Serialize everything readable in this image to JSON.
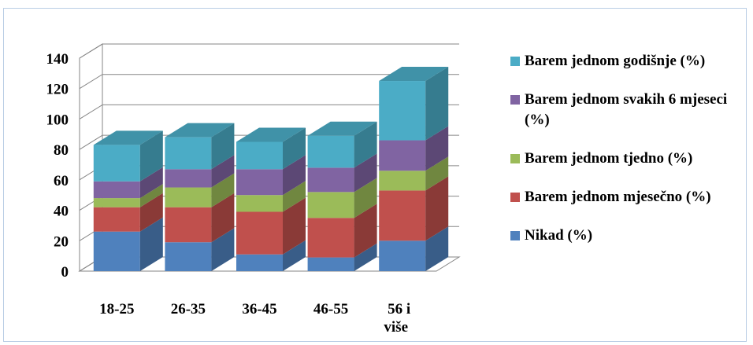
{
  "chart_data": {
    "type": "bar",
    "stacked": true,
    "three_d": true,
    "categories": [
      "18-25",
      "26-35",
      "36-45",
      "46-55",
      "56 i više"
    ],
    "series": [
      {
        "name": "Nikad (%)",
        "color": "#4f81bd",
        "values": [
          26,
          19,
          11,
          9,
          20
        ]
      },
      {
        "name": "Barem jednom mjesečno (%)",
        "color": "#c0504d",
        "values": [
          16,
          23,
          28,
          26,
          33
        ]
      },
      {
        "name": "Barem jednom tjedno (%)",
        "color": "#9bbb59",
        "values": [
          6,
          13,
          11,
          17,
          13
        ]
      },
      {
        "name": "Barem jednom svakih 6 mjeseci (%)",
        "color": "#8064a2",
        "values": [
          11,
          12,
          17,
          16,
          20
        ]
      },
      {
        "name": "Barem jednom godišnje (%)",
        "color": "#4bacc6",
        "values": [
          24,
          21,
          18,
          21,
          39
        ]
      }
    ],
    "ylim": [
      0,
      140
    ],
    "yticks": [
      0,
      20,
      40,
      60,
      80,
      100,
      120,
      140
    ],
    "grid": true,
    "legend_position": "right"
  }
}
